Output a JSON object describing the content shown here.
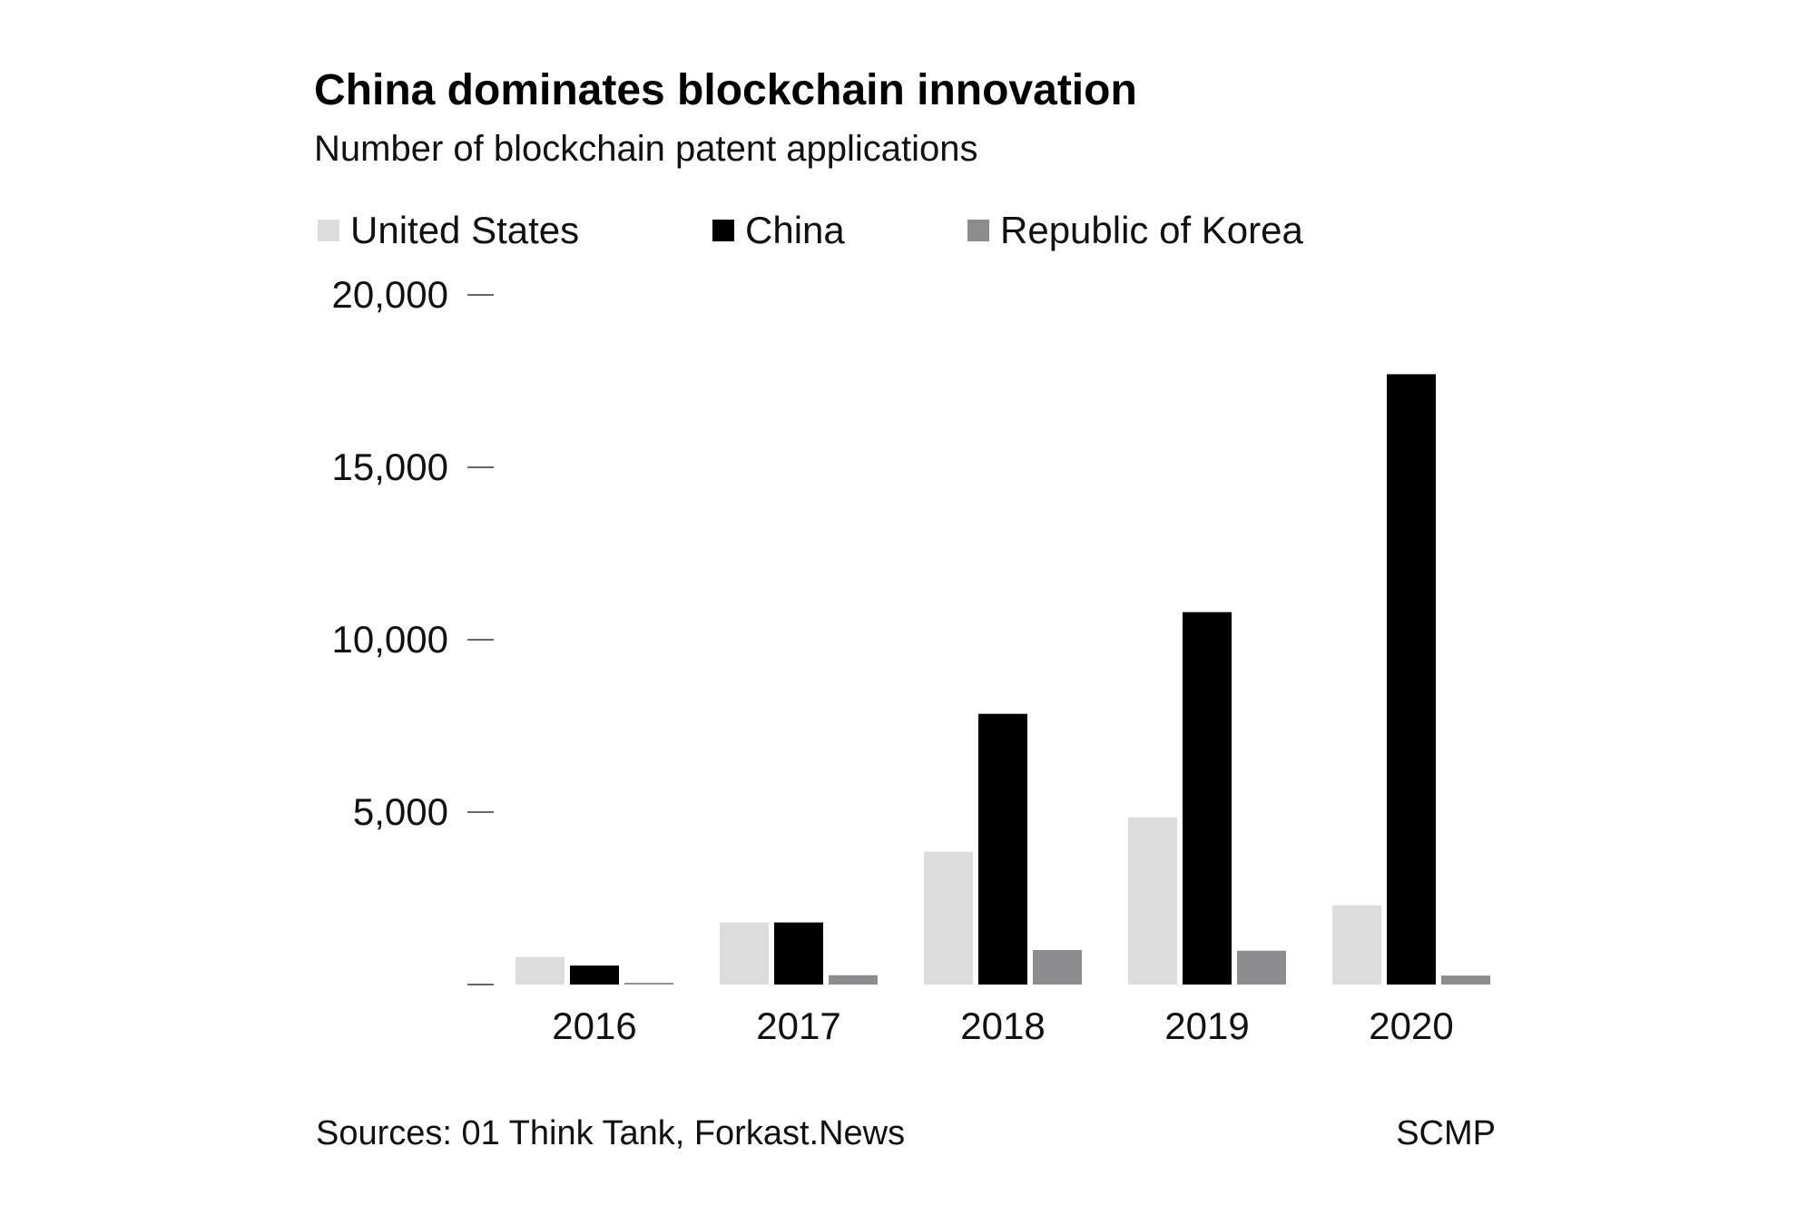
{
  "chart_data": {
    "type": "bar",
    "title": "China dominates blockchain innovation",
    "subtitle": "Number of blockchain patent applications",
    "xlabel": "",
    "ylabel": "",
    "categories": [
      "2016",
      "2017",
      "2018",
      "2019",
      "2020"
    ],
    "series": [
      {
        "name": "United States",
        "color": "#dcdcdd",
        "values": [
          800,
          1800,
          3850,
          4850,
          2300
        ]
      },
      {
        "name": "China",
        "color": "#000000",
        "values": [
          550,
          1800,
          7850,
          10800,
          17700
        ]
      },
      {
        "name": "Republic of Korea",
        "color": "#8c8c8e",
        "values": [
          50,
          270,
          1000,
          980,
          260
        ]
      }
    ],
    "ylim": [
      0,
      20000
    ],
    "yticks": [
      0,
      5000,
      10000,
      15000,
      20000
    ],
    "ytick_labels": [
      "",
      "5,000",
      "10,000",
      "15,000",
      "20,000"
    ],
    "grid": false,
    "legend_position": "top",
    "source": "Sources: 01 Think Tank, Forkast.News",
    "credit": "SCMP"
  }
}
